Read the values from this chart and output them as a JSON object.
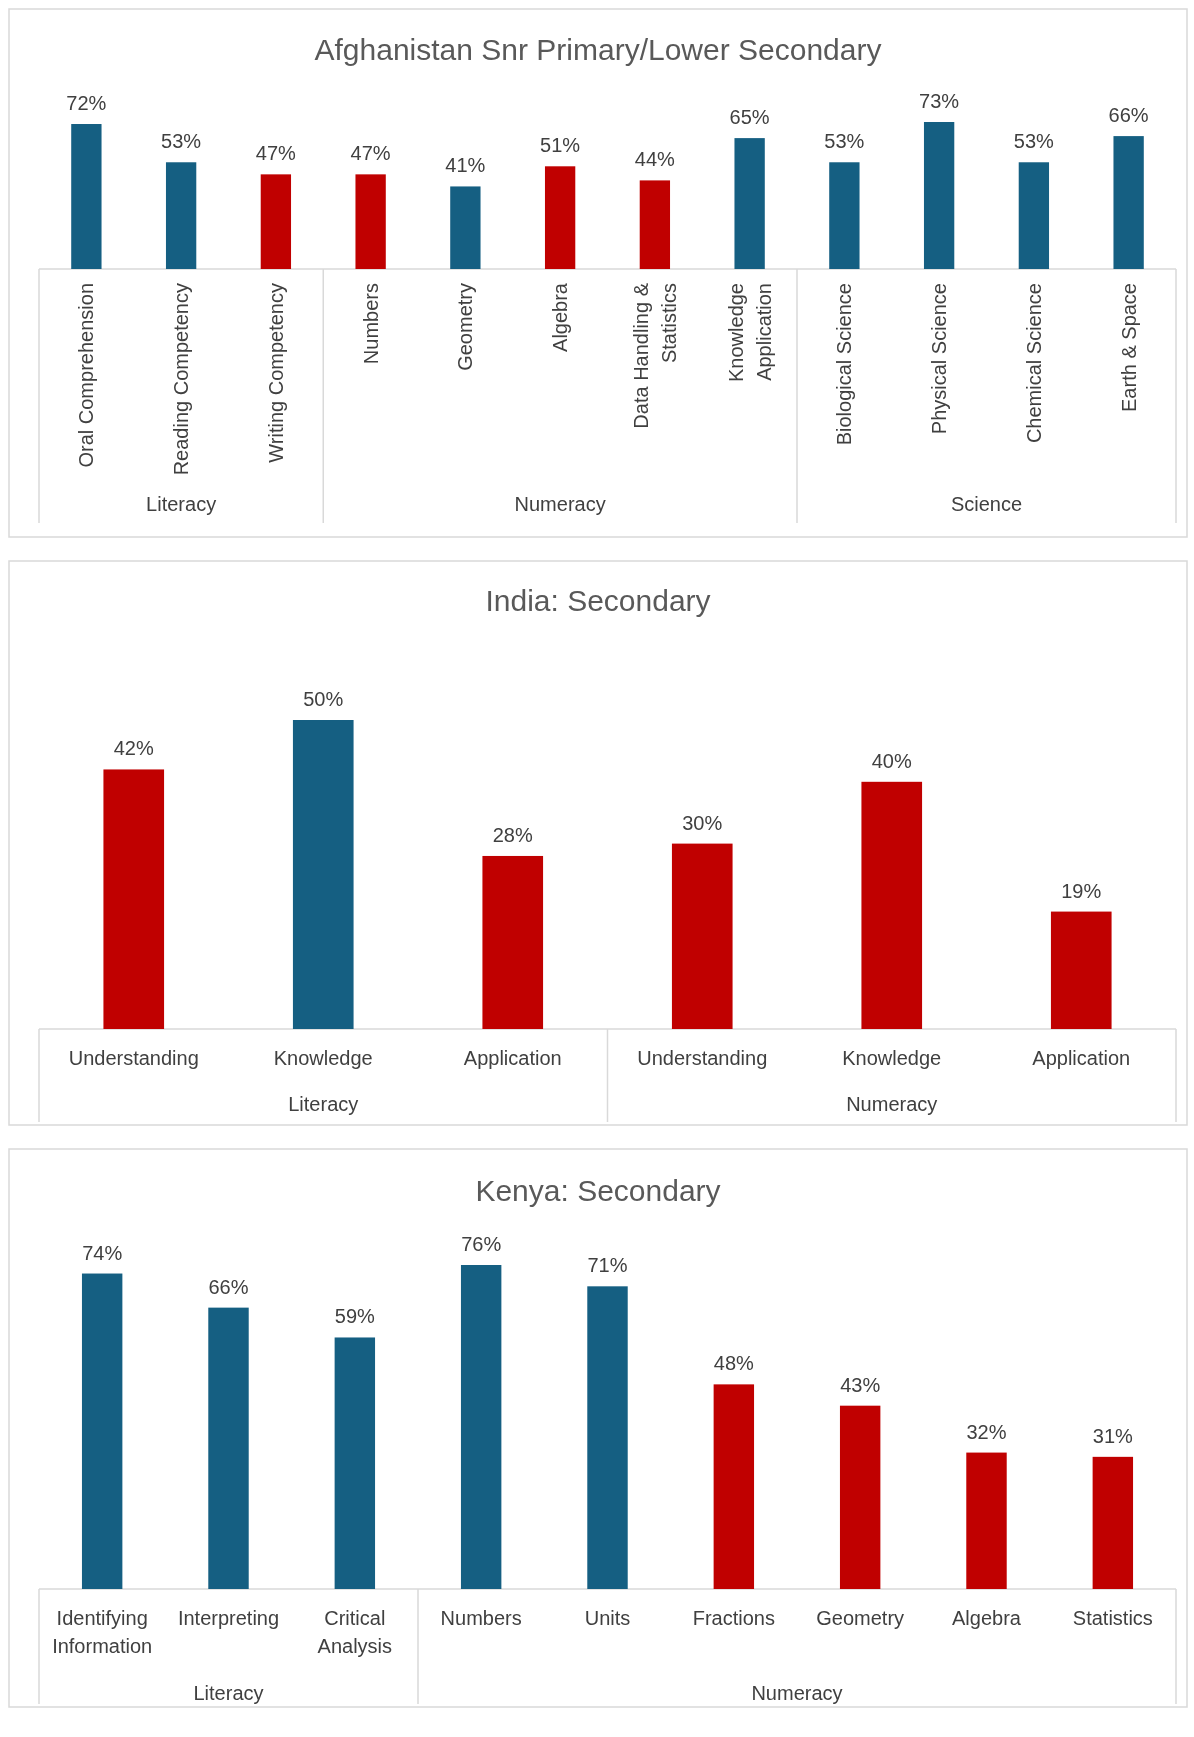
{
  "chart_data": [
    {
      "type": "bar",
      "title": "Afghanistan Snr Primary/Lower Secondary",
      "categories": [
        "Oral Comprehension",
        "Reading Competency",
        "Writing Competency",
        "Numbers",
        "Geometry",
        "Algebra",
        "Data Handling & Statistics",
        "Knowledge Application",
        "Biological Science",
        "Physical Science",
        "Chemical Science",
        "Earth & Space"
      ],
      "values": [
        72,
        53,
        47,
        47,
        41,
        51,
        44,
        65,
        53,
        73,
        53,
        66
      ],
      "colors": [
        "#155f82",
        "#155f82",
        "#c00000",
        "#c00000",
        "#155f82",
        "#c00000",
        "#c00000",
        "#155f82",
        "#155f82",
        "#155f82",
        "#155f82",
        "#155f82"
      ],
      "value_labels": [
        "72%",
        "53%",
        "47%",
        "47%",
        "41%",
        "51%",
        "44%",
        "65%",
        "53%",
        "73%",
        "53%",
        "66%"
      ],
      "annotations": [
        "Literacy",
        "Numeracy",
        "Science"
      ]
    },
    {
      "type": "bar",
      "title": "India: Secondary",
      "categories": [
        "Understanding",
        "Knowledge",
        "Application",
        "Understanding",
        "Knowledge",
        "Application"
      ],
      "values": [
        42,
        50,
        28,
        30,
        40,
        19
      ],
      "colors": [
        "#c00000",
        "#155f82",
        "#c00000",
        "#c00000",
        "#c00000",
        "#c00000"
      ],
      "value_labels": [
        "42%",
        "50%",
        "28%",
        "30%",
        "40%",
        "19%"
      ],
      "annotations": [
        "Literacy",
        "Numeracy"
      ]
    },
    {
      "type": "bar",
      "title": "Kenya: Secondary",
      "categories": [
        "Identifying Information",
        "Interpreting",
        "Critical Analysis",
        "Numbers",
        "Units",
        "Fractions",
        "Geometry",
        "Algebra",
        "Statistics"
      ],
      "values": [
        74,
        66,
        59,
        76,
        71,
        48,
        43,
        32,
        31
      ],
      "colors": [
        "#155f82",
        "#155f82",
        "#155f82",
        "#155f82",
        "#155f82",
        "#c00000",
        "#c00000",
        "#c00000",
        "#c00000"
      ],
      "value_labels": [
        "74%",
        "66%",
        "59%",
        "76%",
        "71%",
        "48%",
        "43%",
        "32%",
        "31%"
      ],
      "annotations": [
        "Literacy",
        "Numeracy"
      ]
    }
  ]
}
